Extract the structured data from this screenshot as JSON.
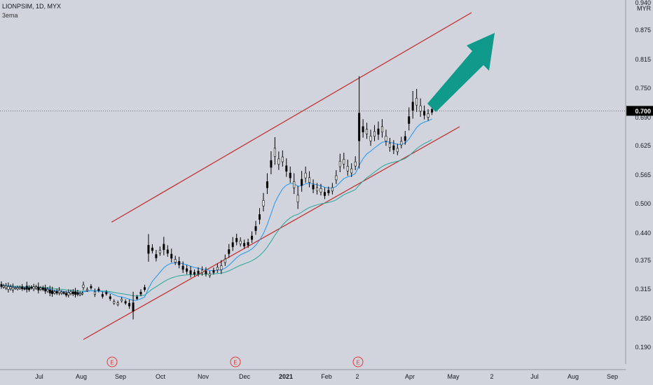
{
  "header": {
    "symbol": "LIONPSIM, 1D, MYX",
    "indicator": "3ema"
  },
  "currency": "MYR",
  "last_price_label": "0.700",
  "earnings_marker": "E",
  "colors": {
    "background": "#d1d4dc",
    "candle": "#000000",
    "ema_fast": "#2196f3",
    "ema_slow": "#26a69a",
    "channel": "#c62828",
    "arrow": "#0f9a8c",
    "price_label_bg": "#000000"
  },
  "chart_data": {
    "type": "candlestick",
    "title": "LIONPSIM, 1D, MYX",
    "y_ticks": [
      "0.940",
      "0.875",
      "0.815",
      "0.750",
      "0.690",
      "0.625",
      "0.565",
      "0.500",
      "0.440",
      "0.375",
      "0.315",
      "0.250",
      "0.190"
    ],
    "x_ticks": [
      "Jul",
      "Aug",
      "Sep",
      "Oct",
      "Nov",
      "Dec",
      "2021",
      "Feb",
      "2",
      "Apr",
      "May",
      "2",
      "Jul",
      "Aug",
      "Sep"
    ],
    "ylim": [
      0.17,
      0.96
    ],
    "last_price": 0.7,
    "earnings_dates": [
      "Sep",
      "Dec",
      "Mar"
    ],
    "channel_upper": [
      [
        "Aug 28",
        0.46
      ],
      [
        "May 14",
        0.93
      ]
    ],
    "channel_lower": [
      [
        "Aug 1",
        0.2
      ],
      [
        "Apr 23",
        0.67
      ]
    ],
    "price_path": [
      [
        0.32,
        0.018
      ],
      [
        0.312,
        0.01
      ],
      [
        0.318,
        0.012
      ],
      [
        0.305,
        0.018
      ],
      [
        0.312,
        0.012
      ],
      [
        0.3,
        0.015
      ],
      [
        0.305,
        0.012
      ],
      [
        0.295,
        0.015
      ],
      [
        0.285,
        0.012
      ],
      [
        0.282,
        0.012
      ],
      [
        0.29,
        0.012
      ],
      [
        0.285,
        0.012
      ],
      [
        0.28,
        0.02
      ],
      [
        0.275,
        0.06
      ],
      [
        0.295,
        0.012
      ],
      [
        0.305,
        0.015
      ],
      [
        0.315,
        0.015
      ],
      [
        0.4,
        0.06
      ],
      [
        0.4,
        0.02
      ],
      [
        0.385,
        0.025
      ],
      [
        0.395,
        0.02
      ],
      [
        0.405,
        0.04
      ],
      [
        0.395,
        0.025
      ],
      [
        0.385,
        0.03
      ],
      [
        0.375,
        0.02
      ],
      [
        0.37,
        0.025
      ],
      [
        0.36,
        0.025
      ],
      [
        0.355,
        0.02
      ],
      [
        0.35,
        0.025
      ],
      [
        0.348,
        0.015
      ],
      [
        0.35,
        0.02
      ],
      [
        0.352,
        0.02
      ],
      [
        0.35,
        0.02
      ],
      [
        0.345,
        0.015
      ],
      [
        0.352,
        0.015
      ],
      [
        0.358,
        0.02
      ],
      [
        0.36,
        0.03
      ],
      [
        0.375,
        0.025
      ],
      [
        0.395,
        0.03
      ],
      [
        0.41,
        0.03
      ],
      [
        0.42,
        0.025
      ],
      [
        0.415,
        0.02
      ],
      [
        0.41,
        0.02
      ],
      [
        0.412,
        0.02
      ],
      [
        0.425,
        0.025
      ],
      [
        0.445,
        0.03
      ],
      [
        0.47,
        0.035
      ],
      [
        0.5,
        0.04
      ],
      [
        0.54,
        0.045
      ],
      [
        0.585,
        0.05
      ],
      [
        0.61,
        0.06
      ],
      [
        0.59,
        0.04
      ],
      [
        0.595,
        0.035
      ],
      [
        0.575,
        0.04
      ],
      [
        0.56,
        0.035
      ],
      [
        0.54,
        0.045
      ],
      [
        0.51,
        0.05
      ],
      [
        0.545,
        0.045
      ],
      [
        0.56,
        0.035
      ],
      [
        0.55,
        0.035
      ],
      [
        0.535,
        0.03
      ],
      [
        0.53,
        0.025
      ],
      [
        0.528,
        0.025
      ],
      [
        0.52,
        0.025
      ],
      [
        0.525,
        0.02
      ],
      [
        0.53,
        0.025
      ],
      [
        0.555,
        0.03
      ],
      [
        0.585,
        0.04
      ],
      [
        0.59,
        0.035
      ],
      [
        0.575,
        0.035
      ],
      [
        0.57,
        0.03
      ],
      [
        0.585,
        0.03
      ],
      [
        0.665,
        0.2
      ],
      [
        0.66,
        0.04
      ],
      [
        0.655,
        0.035
      ],
      [
        0.64,
        0.035
      ],
      [
        0.65,
        0.035
      ],
      [
        0.655,
        0.04
      ],
      [
        0.66,
        0.04
      ],
      [
        0.64,
        0.035
      ],
      [
        0.625,
        0.03
      ],
      [
        0.62,
        0.03
      ],
      [
        0.615,
        0.025
      ],
      [
        0.63,
        0.025
      ],
      [
        0.64,
        0.03
      ],
      [
        0.68,
        0.05
      ],
      [
        0.71,
        0.06
      ],
      [
        0.72,
        0.05
      ],
      [
        0.705,
        0.04
      ],
      [
        0.695,
        0.03
      ],
      [
        0.69,
        0.025
      ],
      [
        0.7,
        0.02
      ]
    ],
    "series": [
      {
        "name": "Price",
        "type": "candlestick"
      },
      {
        "name": "EMA fast",
        "type": "line"
      },
      {
        "name": "EMA slow",
        "type": "line"
      }
    ],
    "annotations": [
      "ascending channel",
      "arrow pointing up-right"
    ]
  }
}
